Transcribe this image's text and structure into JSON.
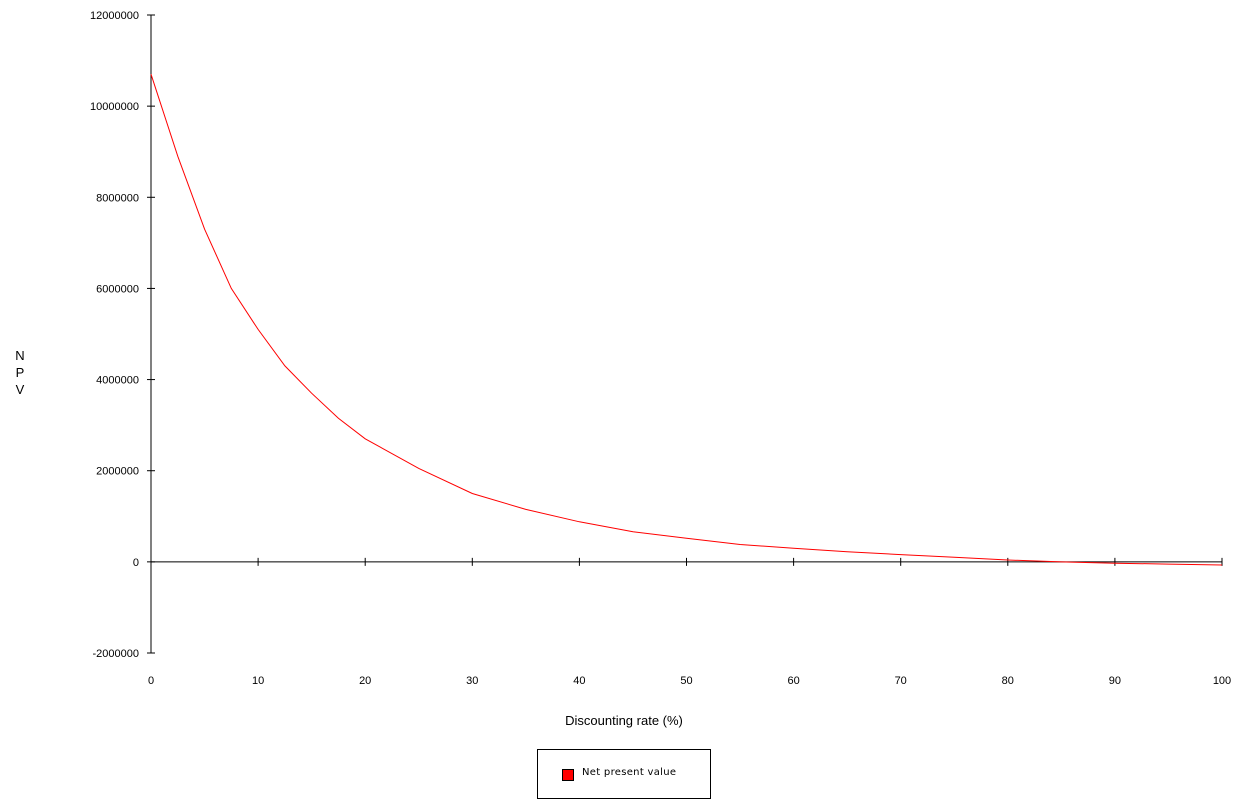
{
  "chart_data": {
    "type": "line",
    "title": "",
    "xlabel": "Discounting rate (%)",
    "ylabel": "NPV",
    "xlim": [
      0,
      100
    ],
    "ylim": [
      -2000000,
      12000000
    ],
    "x_ticks": [
      0,
      10,
      20,
      30,
      40,
      50,
      60,
      70,
      80,
      90,
      100
    ],
    "y_ticks": [
      -2000000,
      0,
      2000000,
      4000000,
      6000000,
      8000000,
      10000000,
      12000000
    ],
    "x_tick_labels": [
      "0",
      "10",
      "20",
      "30",
      "40",
      "50",
      "60",
      "70",
      "80",
      "90",
      "100"
    ],
    "y_tick_labels": [
      "-2000000",
      "0",
      "2000000",
      "4000000",
      "6000000",
      "8000000",
      "10000000",
      "12000000"
    ],
    "grid": false,
    "legend_position": "bottom-center",
    "series": [
      {
        "name": "Net present value",
        "color": "#ff0000",
        "x": [
          0,
          2.5,
          5,
          7.5,
          10,
          12.5,
          15,
          17.5,
          20,
          25,
          30,
          35,
          40,
          45,
          50,
          55,
          60,
          65,
          70,
          75,
          80,
          85,
          90,
          95,
          100
        ],
        "y": [
          10700000,
          8900000,
          7300000,
          6000000,
          5100000,
          4300000,
          3700000,
          3150000,
          2700000,
          2050000,
          1500000,
          1150000,
          880000,
          660000,
          520000,
          380000,
          300000,
          220000,
          160000,
          100000,
          40000,
          0,
          -30000,
          -50000,
          -70000
        ]
      }
    ]
  }
}
